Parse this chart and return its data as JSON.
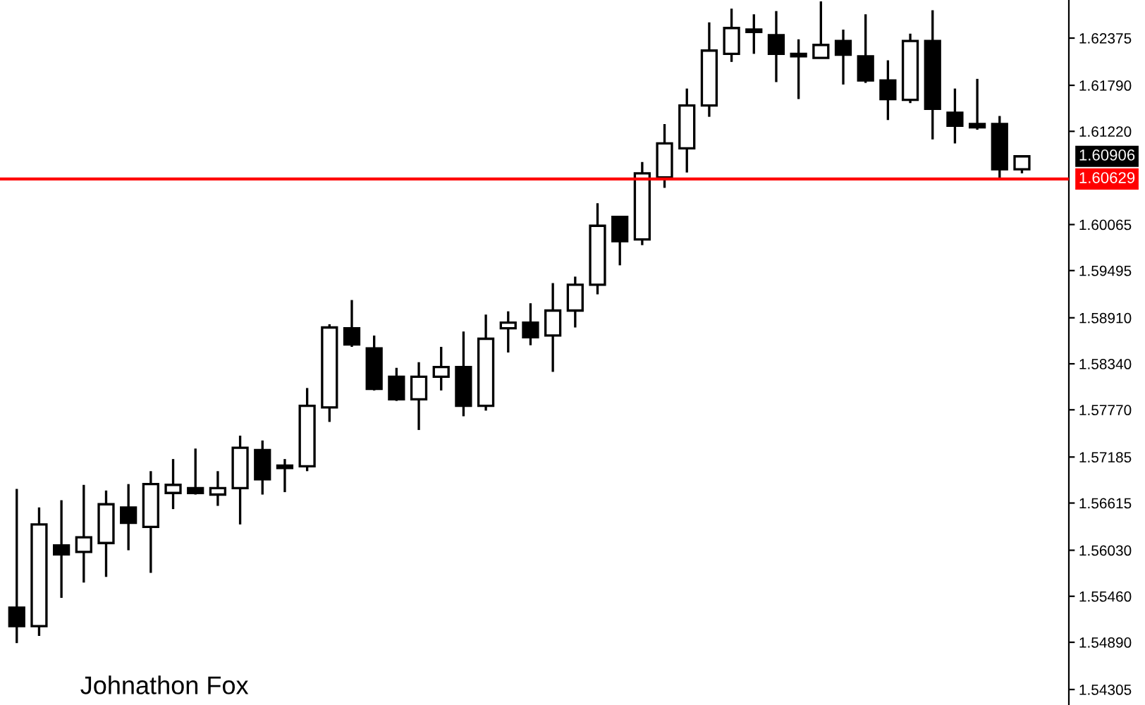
{
  "chart_data": {
    "type": "candlestick",
    "categories": [
      null,
      null,
      null,
      null,
      null,
      null,
      null,
      null,
      null,
      null,
      null,
      null,
      null,
      null,
      null,
      null,
      null,
      null,
      null,
      null,
      null,
      null,
      null,
      null,
      null,
      null,
      null,
      null,
      null,
      null,
      null,
      null,
      null,
      null,
      null,
      null,
      null,
      null,
      null,
      null,
      null,
      null,
      null,
      null,
      null,
      null
    ],
    "ohlc": [
      [
        1.5532,
        1.5679,
        1.5488,
        1.5509
      ],
      [
        1.5509,
        1.5656,
        1.5497,
        1.5635
      ],
      [
        1.5609,
        1.5665,
        1.5544,
        1.5598
      ],
      [
        1.5601,
        1.5684,
        1.5563,
        1.5619
      ],
      [
        1.5612,
        1.5677,
        1.557,
        1.566
      ],
      [
        1.5656,
        1.5685,
        1.5603,
        1.5637
      ],
      [
        1.5632,
        1.5701,
        1.5575,
        1.5685
      ],
      [
        1.5674,
        1.5716,
        1.5654,
        1.5684
      ],
      [
        1.568,
        1.5729,
        1.5672,
        1.5674
      ],
      [
        1.5672,
        1.5701,
        1.5658,
        1.568
      ],
      [
        1.568,
        1.5745,
        1.5635,
        1.573
      ],
      [
        1.5727,
        1.5739,
        1.5672,
        1.5691
      ],
      [
        1.5705,
        1.5716,
        1.5675,
        1.5708
      ],
      [
        1.5707,
        1.5804,
        1.5701,
        1.5782
      ],
      [
        1.578,
        1.5883,
        1.5762,
        1.5879
      ],
      [
        1.5878,
        1.5913,
        1.5855,
        1.5858
      ],
      [
        1.5853,
        1.5869,
        1.5801,
        1.5803
      ],
      [
        1.5818,
        1.5829,
        1.5788,
        1.579
      ],
      [
        1.579,
        1.5836,
        1.5752,
        1.5818
      ],
      [
        1.5818,
        1.5855,
        1.5801,
        1.583
      ],
      [
        1.583,
        1.5874,
        1.5769,
        1.5782
      ],
      [
        1.5782,
        1.5895,
        1.5776,
        1.5865
      ],
      [
        1.5878,
        1.5899,
        1.5848,
        1.5885
      ],
      [
        1.5885,
        1.5909,
        1.5857,
        1.5867
      ],
      [
        1.5869,
        1.5934,
        1.5824,
        1.59
      ],
      [
        1.59,
        1.5942,
        1.5879,
        1.5932
      ],
      [
        1.5932,
        1.6033,
        1.592,
        1.6005
      ],
      [
        1.6016,
        1.6017,
        1.5956,
        1.5986
      ],
      [
        1.5988,
        1.6084,
        1.5981,
        1.607
      ],
      [
        1.6065,
        1.6131,
        1.6052,
        1.6107
      ],
      [
        1.6101,
        1.6175,
        1.6071,
        1.6154
      ],
      [
        1.6154,
        1.6257,
        1.614,
        1.6222
      ],
      [
        1.6218,
        1.6274,
        1.6208,
        1.625
      ],
      [
        1.6248,
        1.6267,
        1.6218,
        1.6245
      ],
      [
        1.6241,
        1.6271,
        1.6183,
        1.6218
      ],
      [
        1.6218,
        1.6236,
        1.6162,
        1.6215
      ],
      [
        1.6213,
        1.6283,
        1.6213,
        1.6229
      ],
      [
        1.6234,
        1.6248,
        1.618,
        1.6217
      ],
      [
        1.6215,
        1.6267,
        1.6182,
        1.6185
      ],
      [
        1.6185,
        1.621,
        1.6136,
        1.6162
      ],
      [
        1.6161,
        1.6243,
        1.6157,
        1.6234
      ],
      [
        1.6234,
        1.6272,
        1.6112,
        1.615
      ],
      [
        1.6145,
        1.6175,
        1.6107,
        1.6129
      ],
      [
        1.6131,
        1.6187,
        1.6124,
        1.6127
      ],
      [
        1.6131,
        1.6141,
        1.6063,
        1.6075
      ],
      [
        1.6075,
        1.6091,
        1.607,
        1.6091
      ]
    ],
    "colors": [
      "#000000",
      "#ffffff",
      "#000000",
      "#ffffff",
      "#ffffff",
      "#000000",
      "#ffffff",
      "#ffffff",
      "#000000",
      "#ffffff",
      "#ffffff",
      "#000000",
      "#ffffff",
      "#ffffff",
      "#ffffff",
      "#000000",
      "#000000",
      "#000000",
      "#ffffff",
      "#ffffff",
      "#000000",
      "#ffffff",
      "#ffffff",
      "#000000",
      "#ffffff",
      "#ffffff",
      "#ffffff",
      "#000000",
      "#ffffff",
      "#ffffff",
      "#ffffff",
      "#ffffff",
      "#ffffff",
      "#000000",
      "#000000",
      "#000000",
      "#ffffff",
      "#000000",
      "#000000",
      "#000000",
      "#ffffff",
      "#000000",
      "#000000",
      "#000000",
      "#000000",
      "#ffffff"
    ],
    "ylim": [
      1.54113,
      1.62847
    ],
    "yticks": [
      1.54305,
      {
        "value": 1.5489,
        "label": "1.54890"
      },
      {
        "value": 1.5546,
        "label": "1.55460"
      },
      {
        "value": 1.5603,
        "label": "1.56030"
      },
      1.56615,
      1.57185,
      {
        "value": 1.5777,
        "label": "1.57770"
      },
      {
        "value": 1.5834,
        "label": "1.58340"
      },
      {
        "value": 1.5891,
        "label": "1.58910"
      },
      1.59495,
      1.60065,
      {
        "value": 1.6122,
        "label": "1.61220"
      },
      {
        "value": 1.6179,
        "label": "1.61790"
      },
      1.62375
    ],
    "ref_lines": [
      {
        "axis": "y",
        "value": 1.60629,
        "label": "1.60629",
        "color": "#ff0000"
      }
    ],
    "annotations": [
      "1.60906",
      "Johnathon Fox"
    ],
    "grid": false
  }
}
